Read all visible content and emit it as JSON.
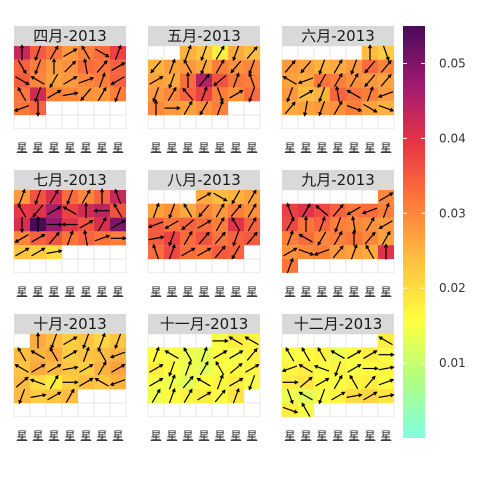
{
  "chart_data": {
    "type": "heatmap",
    "subtype": "calendar-heatmap-with-wind-arrows",
    "year": 2013,
    "weekday_labels": [
      "星",
      "星",
      "星",
      "星",
      "星",
      "星",
      "星"
    ],
    "week_start": "monday",
    "grid": true,
    "legend": {
      "placement": "right",
      "min": 0.0,
      "max": 0.055,
      "ticks": [
        0.01,
        0.02,
        0.03,
        0.04,
        0.05
      ],
      "tick_labels": [
        "0.01",
        "0.02",
        "0.03",
        "0.04",
        "0.05"
      ],
      "colors": [
        "#80ffe0",
        "#b0ff80",
        "#ffff40",
        "#ffc040",
        "#ff7a3a",
        "#e83545",
        "#a01a70",
        "#4a0a5a"
      ]
    },
    "arrow_color": "#000000",
    "panels": [
      {
        "title": "四月-2013",
        "month": 4,
        "first_weekday": 0,
        "days": 30,
        "values": [
          0.043,
          0.035,
          0.032,
          0.028,
          0.031,
          0.033,
          0.038,
          0.034,
          0.031,
          0.028,
          0.029,
          0.033,
          0.032,
          0.034,
          0.035,
          0.03,
          0.027,
          0.028,
          0.03,
          0.031,
          0.034,
          0.032,
          0.042,
          0.031,
          0.03,
          0.029,
          0.028,
          0.031,
          0.032,
          0.034
        ],
        "angles": [
          0,
          200,
          30,
          60,
          330,
          120,
          20,
          150,
          200,
          0,
          45,
          350,
          40,
          60,
          120,
          300,
          210,
          60,
          70,
          20,
          240,
          330,
          200,
          60,
          80,
          220,
          30,
          200,
          250,
          180
        ]
      },
      {
        "title": "五月-2013",
        "month": 5,
        "first_weekday": 2,
        "days": 31,
        "values": [
          0.025,
          0.023,
          0.018,
          0.026,
          0.024,
          0.025,
          0.027,
          0.028,
          0.026,
          0.031,
          0.029,
          0.03,
          0.027,
          0.026,
          0.033,
          0.045,
          0.036,
          0.032,
          0.031,
          0.028,
          0.03,
          0.034,
          0.038,
          0.031,
          0.029,
          0.033,
          0.03,
          0.028,
          0.027,
          0.029,
          0.031
        ],
        "angles": [
          20,
          200,
          30,
          200,
          40,
          220,
          20,
          330,
          200,
          30,
          220,
          200,
          60,
          200,
          0,
          40,
          230,
          20,
          340,
          200,
          30,
          320,
          20,
          160,
          60,
          200,
          0,
          90,
          30,
          210,
          20
        ]
      },
      {
        "title": "六月-2013",
        "month": 6,
        "first_weekday": 5,
        "days": 30,
        "values": [
          0.024,
          0.022,
          0.028,
          0.027,
          0.025,
          0.026,
          0.028,
          0.033,
          0.03,
          0.027,
          0.026,
          0.032,
          0.031,
          0.029,
          0.028,
          0.027,
          0.028,
          0.024,
          0.025,
          0.034,
          0.032,
          0.031,
          0.028,
          0.026,
          0.027,
          0.028,
          0.029,
          0.031,
          0.027,
          0.025
        ],
        "angles": [
          0,
          160,
          40,
          220,
          200,
          30,
          200,
          220,
          40,
          300,
          250,
          210,
          30,
          30,
          220,
          40,
          200,
          60,
          200,
          350,
          300,
          20,
          250,
          40,
          190,
          200,
          30,
          110,
          120,
          110
        ]
      },
      {
        "title": "七月-2013",
        "month": 7,
        "first_weekday": 0,
        "days": 31,
        "values": [
          0.028,
          0.036,
          0.041,
          0.033,
          0.03,
          0.034,
          0.043,
          0.039,
          0.04,
          0.046,
          0.038,
          0.042,
          0.044,
          0.036,
          0.041,
          0.055,
          0.048,
          0.04,
          0.036,
          0.041,
          0.05,
          0.03,
          0.034,
          0.036,
          0.032,
          0.034,
          0.032,
          0.031,
          0.023,
          0.022,
          0.02
        ],
        "angles": [
          20,
          200,
          30,
          200,
          30,
          0,
          340,
          330,
          220,
          60,
          300,
          0,
          270,
          330,
          180,
          0,
          90,
          270,
          60,
          30,
          60,
          240,
          60,
          40,
          20,
          350,
          70,
          90,
          60,
          60,
          80
        ]
      },
      {
        "title": "八月-2013",
        "month": 8,
        "first_weekday": 3,
        "days": 31,
        "values": [
          0.026,
          0.024,
          0.025,
          0.027,
          0.027,
          0.029,
          0.026,
          0.03,
          0.028,
          0.031,
          0.029,
          0.035,
          0.032,
          0.034,
          0.033,
          0.031,
          0.04,
          0.034,
          0.035,
          0.038,
          0.033,
          0.036,
          0.032,
          0.034,
          0.035,
          0.033,
          0.037,
          0.033,
          0.032,
          0.035,
          0.034
        ],
        "angles": [
          60,
          120,
          210,
          30,
          20,
          200,
          330,
          220,
          30,
          40,
          30,
          250,
          240,
          230,
          60,
          30,
          330,
          30,
          80,
          200,
          30,
          40,
          40,
          200,
          40,
          340,
          20,
          60,
          60,
          40,
          210
        ]
      },
      {
        "title": "九月-2013",
        "month": 9,
        "first_weekday": 6,
        "days": 30,
        "values": [
          0.03,
          0.038,
          0.04,
          0.037,
          0.034,
          0.032,
          0.033,
          0.031,
          0.037,
          0.032,
          0.034,
          0.031,
          0.03,
          0.029,
          0.028,
          0.031,
          0.033,
          0.03,
          0.031,
          0.032,
          0.03,
          0.027,
          0.029,
          0.03,
          0.031,
          0.028,
          0.027,
          0.026,
          0.04,
          0.032
        ],
        "angles": [
          60,
          340,
          30,
          310,
          40,
          240,
          250,
          20,
          30,
          0,
          20,
          200,
          350,
          30,
          240,
          20,
          300,
          210,
          30,
          0,
          40,
          30,
          60,
          110,
          250,
          40,
          20,
          330,
          0,
          20
        ]
      },
      {
        "title": "十月-2013",
        "month": 10,
        "first_weekday": 1,
        "days": 31,
        "values": [
          0.026,
          0.024,
          0.022,
          0.023,
          0.021,
          0.023,
          0.024,
          0.025,
          0.026,
          0.022,
          0.023,
          0.024,
          0.025,
          0.023,
          0.026,
          0.024,
          0.023,
          0.022,
          0.025,
          0.027,
          0.024,
          0.02,
          0.018,
          0.022,
          0.024,
          0.023,
          0.025,
          0.024,
          0.022,
          0.023,
          0.024
        ],
        "angles": [
          0,
          200,
          60,
          200,
          20,
          200,
          330,
          300,
          330,
          60,
          20,
          330,
          250,
          300,
          60,
          60,
          80,
          60,
          30,
          60,
          50,
          290,
          30,
          90,
          60,
          300,
          250,
          200,
          80,
          60,
          30
        ]
      },
      {
        "title": "十一月-2013",
        "month": 11,
        "first_weekday": 4,
        "days": 30,
        "values": [
          0.015,
          0.018,
          0.017,
          0.016,
          0.015,
          0.014,
          0.013,
          0.016,
          0.015,
          0.017,
          0.018,
          0.016,
          0.014,
          0.013,
          0.015,
          0.016,
          0.017,
          0.015,
          0.014,
          0.013,
          0.016,
          0.017,
          0.018,
          0.015,
          0.014,
          0.016,
          0.017,
          0.018,
          0.016,
          0.019
        ],
        "angles": [
          90,
          300,
          300,
          20,
          300,
          330,
          20,
          60,
          60,
          40,
          60,
          200,
          20,
          30,
          330,
          50,
          60,
          60,
          20,
          40,
          300,
          20,
          60,
          200,
          30,
          20,
          30,
          60,
          40,
          20
        ]
      },
      {
        "title": "十二月-2013",
        "month": 12,
        "first_weekday": 6,
        "days": 31,
        "values": [
          0.018,
          0.015,
          0.016,
          0.017,
          0.014,
          0.016,
          0.018,
          0.015,
          0.017,
          0.018,
          0.016,
          0.017,
          0.015,
          0.016,
          0.017,
          0.018,
          0.019,
          0.016,
          0.015,
          0.017,
          0.018,
          0.016,
          0.014,
          0.013,
          0.015,
          0.017,
          0.02,
          0.021,
          0.019,
          0.018,
          0.015
        ],
        "angles": [
          300,
          330,
          330,
          330,
          300,
          60,
          60,
          90,
          250,
          300,
          290,
          200,
          60,
          90,
          80,
          90,
          50,
          60,
          30,
          330,
          40,
          70,
          160,
          300,
          200,
          60,
          80,
          60,
          80,
          110,
          330
        ]
      }
    ]
  }
}
